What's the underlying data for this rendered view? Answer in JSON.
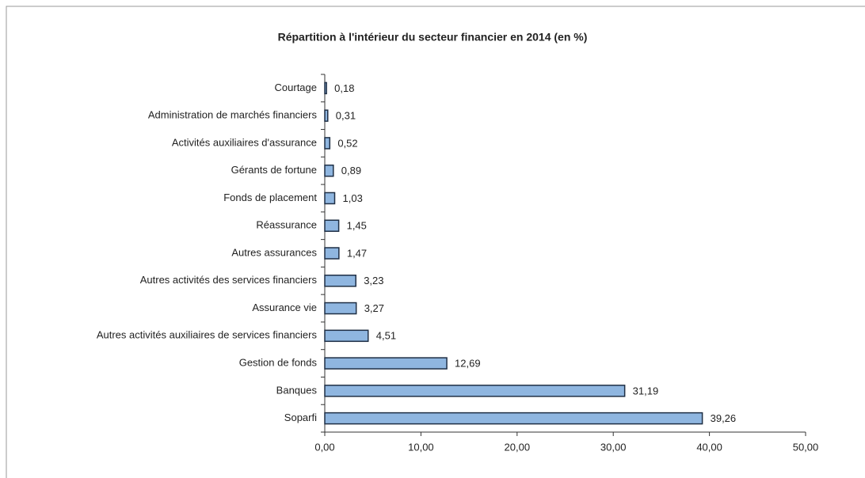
{
  "chart_data": {
    "type": "bar",
    "orientation": "horizontal",
    "title": "Répartition à l'intérieur du secteur financier en 2014 (en %)",
    "categories": [
      "Courtage",
      "Administration de marchés financiers",
      "Activités auxiliaires d'assurance",
      "Gérants de fortune",
      "Fonds de placement",
      "Réassurance",
      "Autres assurances",
      "Autres activités des services financiers",
      "Assurance vie",
      "Autres activités auxiliaires de services financiers",
      "Gestion de fonds",
      "Banques",
      "Soparfi"
    ],
    "values": [
      0.18,
      0.31,
      0.52,
      0.89,
      1.03,
      1.45,
      1.47,
      3.23,
      3.27,
      4.51,
      12.69,
      31.19,
      39.26
    ],
    "value_labels": [
      "0,18",
      "0,31",
      "0,52",
      "0,89",
      "1,03",
      "1,45",
      "1,47",
      "3,23",
      "3,27",
      "4,51",
      "12,69",
      "31,19",
      "39,26"
    ],
    "color": "#8fb6e0",
    "xlim": [
      0,
      50
    ],
    "xticks": [
      {
        "value": 0,
        "label": "0,00"
      },
      {
        "value": 10,
        "label": "10,00"
      },
      {
        "value": 20,
        "label": "20,00"
      },
      {
        "value": 30,
        "label": "30,00"
      },
      {
        "value": 40,
        "label": "40,00"
      },
      {
        "value": 50,
        "label": "50,00"
      }
    ],
    "grid": false
  }
}
